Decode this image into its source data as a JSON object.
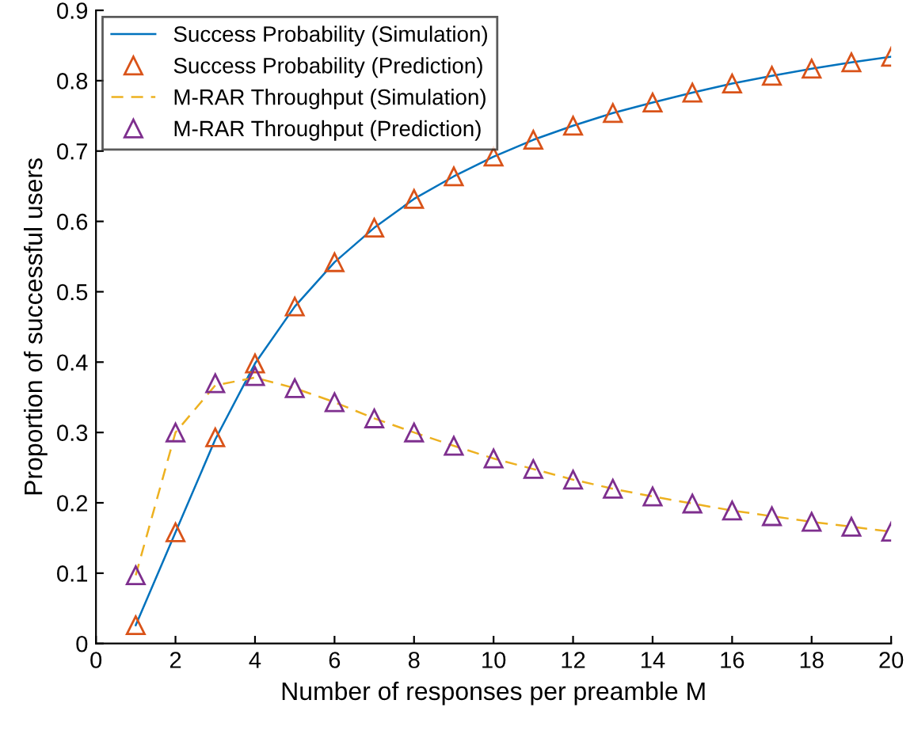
{
  "chart_data": {
    "type": "line",
    "xlabel": "Number of responses per preamble M",
    "ylabel": "Proportion of successful users",
    "x": [
      1,
      2,
      3,
      4,
      5,
      6,
      7,
      8,
      9,
      10,
      11,
      12,
      13,
      14,
      15,
      16,
      17,
      18,
      19,
      20
    ],
    "series": [
      {
        "name": "Success Probability (Simulation)",
        "color": "#0072bd",
        "line_style": "solid",
        "marker": "none",
        "values": [
          0.026,
          0.158,
          0.29,
          0.398,
          0.479,
          0.542,
          0.591,
          0.632,
          0.664,
          0.692,
          0.716,
          0.736,
          0.754,
          0.769,
          0.783,
          0.796,
          0.807,
          0.817,
          0.826,
          0.834
        ]
      },
      {
        "name": "Success Probability (Prediction)",
        "color": "#d95319",
        "type": "scatter",
        "marker": "triangle",
        "values": [
          0.026,
          0.158,
          0.293,
          0.398,
          0.479,
          0.542,
          0.591,
          0.632,
          0.664,
          0.692,
          0.716,
          0.736,
          0.754,
          0.769,
          0.783,
          0.796,
          0.807,
          0.817,
          0.826,
          0.834
        ]
      },
      {
        "name": "M-RAR Throughput (Simulation)",
        "color": "#edb120",
        "line_style": "dashed",
        "marker": "none",
        "values": [
          0.097,
          0.3,
          0.367,
          0.378,
          0.363,
          0.343,
          0.32,
          0.3,
          0.281,
          0.263,
          0.248,
          0.233,
          0.22,
          0.209,
          0.199,
          0.189,
          0.181,
          0.173,
          0.166,
          0.159
        ]
      },
      {
        "name": "M-RAR Throughput (Prediction)",
        "color": "#7e2f8e",
        "type": "scatter",
        "marker": "triangle",
        "values": [
          0.097,
          0.3,
          0.37,
          0.38,
          0.363,
          0.343,
          0.32,
          0.3,
          0.281,
          0.263,
          0.248,
          0.233,
          0.22,
          0.209,
          0.199,
          0.189,
          0.181,
          0.173,
          0.166,
          0.159
        ]
      }
    ],
    "xlim": [
      0,
      20
    ],
    "ylim": [
      0,
      0.9
    ],
    "xticks": [
      0,
      2,
      4,
      6,
      8,
      10,
      12,
      14,
      16,
      18,
      20
    ],
    "yticks": [
      0,
      0.1,
      0.2,
      0.3,
      0.4,
      0.5,
      0.6,
      0.7,
      0.8,
      0.9
    ],
    "grid": false,
    "legend": "top left"
  }
}
